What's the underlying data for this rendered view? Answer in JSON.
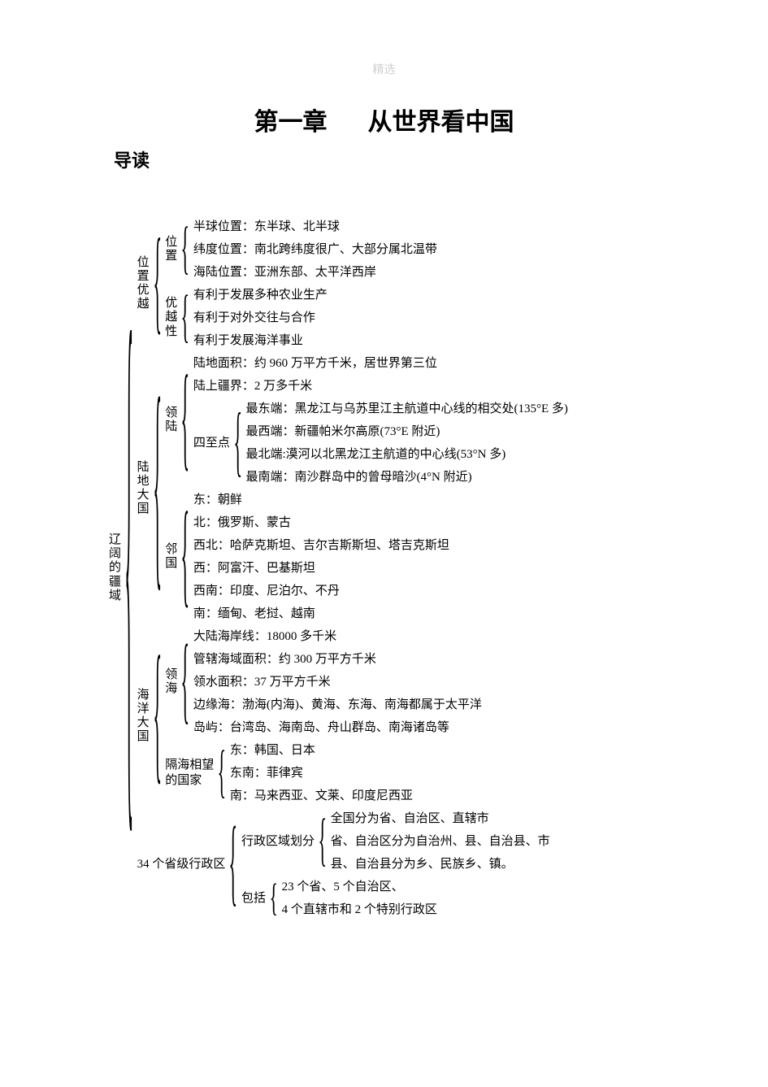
{
  "watermark": "精选",
  "chapter": {
    "num": "第一章",
    "title": "从世界看中国"
  },
  "intro": "导读",
  "tree": {
    "root": "辽阔的疆域",
    "branches": [
      {
        "label": "位置优越",
        "children": [
          {
            "label": "位置",
            "leaves": [
              "半球位置：东半球、北半球",
              "纬度位置：南北跨纬度很广、大部分属北温带",
              "海陆位置：亚洲东部、太平洋西岸"
            ]
          },
          {
            "label": "优越性",
            "leaves": [
              "有利于发展多种农业生产",
              "有利于对外交往与合作",
              "有利于发展海洋事业"
            ]
          }
        ]
      },
      {
        "label": "陆地大国",
        "children": [
          {
            "label": "领陆",
            "mixed": [
              {
                "type": "leaf",
                "text": "陆地面积：约 960 万平方千米，居世界第三位"
              },
              {
                "type": "leaf",
                "text": "陆上疆界：2 万多千米"
              },
              {
                "type": "branch",
                "label": "四至点",
                "leaves": [
                  "最东端：黑龙江与乌苏里江主航道中心线的相交处(135°E 多)",
                  "最西端：新疆帕米尔高原(73°E 附近)",
                  "最北端:漠河以北黑龙江主航道的中心线(53°N 多)",
                  "最南端：南沙群岛中的曾母暗沙(4°N 附近)"
                ]
              }
            ]
          },
          {
            "label": "邻国",
            "leaves": [
              "东：朝鲜",
              "北：俄罗斯、蒙古",
              "西北：哈萨克斯坦、吉尔吉斯斯坦、塔吉克斯坦",
              "西：阿富汗、巴基斯坦",
              "西南：印度、尼泊尔、不丹",
              "南：缅甸、老挝、越南"
            ]
          }
        ]
      },
      {
        "label": "海洋大国",
        "children": [
          {
            "label": "领海",
            "leaves": [
              "大陆海岸线：18000 多千米",
              "管辖海域面积：约 300 万平方千米",
              "领水面积：37 万平方千米",
              "边缘海：渤海(内海)、黄海、东海、南海都属于太平洋",
              "岛屿：台湾岛、海南岛、舟山群岛、南海诸岛等"
            ]
          },
          {
            "label": "隔海相望的国家",
            "hlabel": true,
            "leaves": [
              "东：韩国、日本",
              "东南：菲律宾",
              "南：马来西亚、文莱、印度尼西亚"
            ]
          }
        ]
      },
      {
        "label": "34 个省级行政区",
        "hlabel": true,
        "children": [
          {
            "label": "行政区域划分",
            "hlabel": true,
            "leaves": [
              "全国分为省、自治区、直辖市",
              "省、自治区分为自治州、县、自治县、市",
              "县、自治县分为乡、民族乡、镇。"
            ]
          },
          {
            "label": "包括",
            "hlabel": true,
            "leaves": [
              "23 个省、5 个自治区、",
              "4 个直辖市和 2 个特别行政区"
            ]
          }
        ]
      }
    ]
  },
  "style": {
    "text_color": "#000000",
    "brace_color": "#000000",
    "font_size_body": 15,
    "font_size_title": 30,
    "watermark_color": "#d0d0d0"
  }
}
